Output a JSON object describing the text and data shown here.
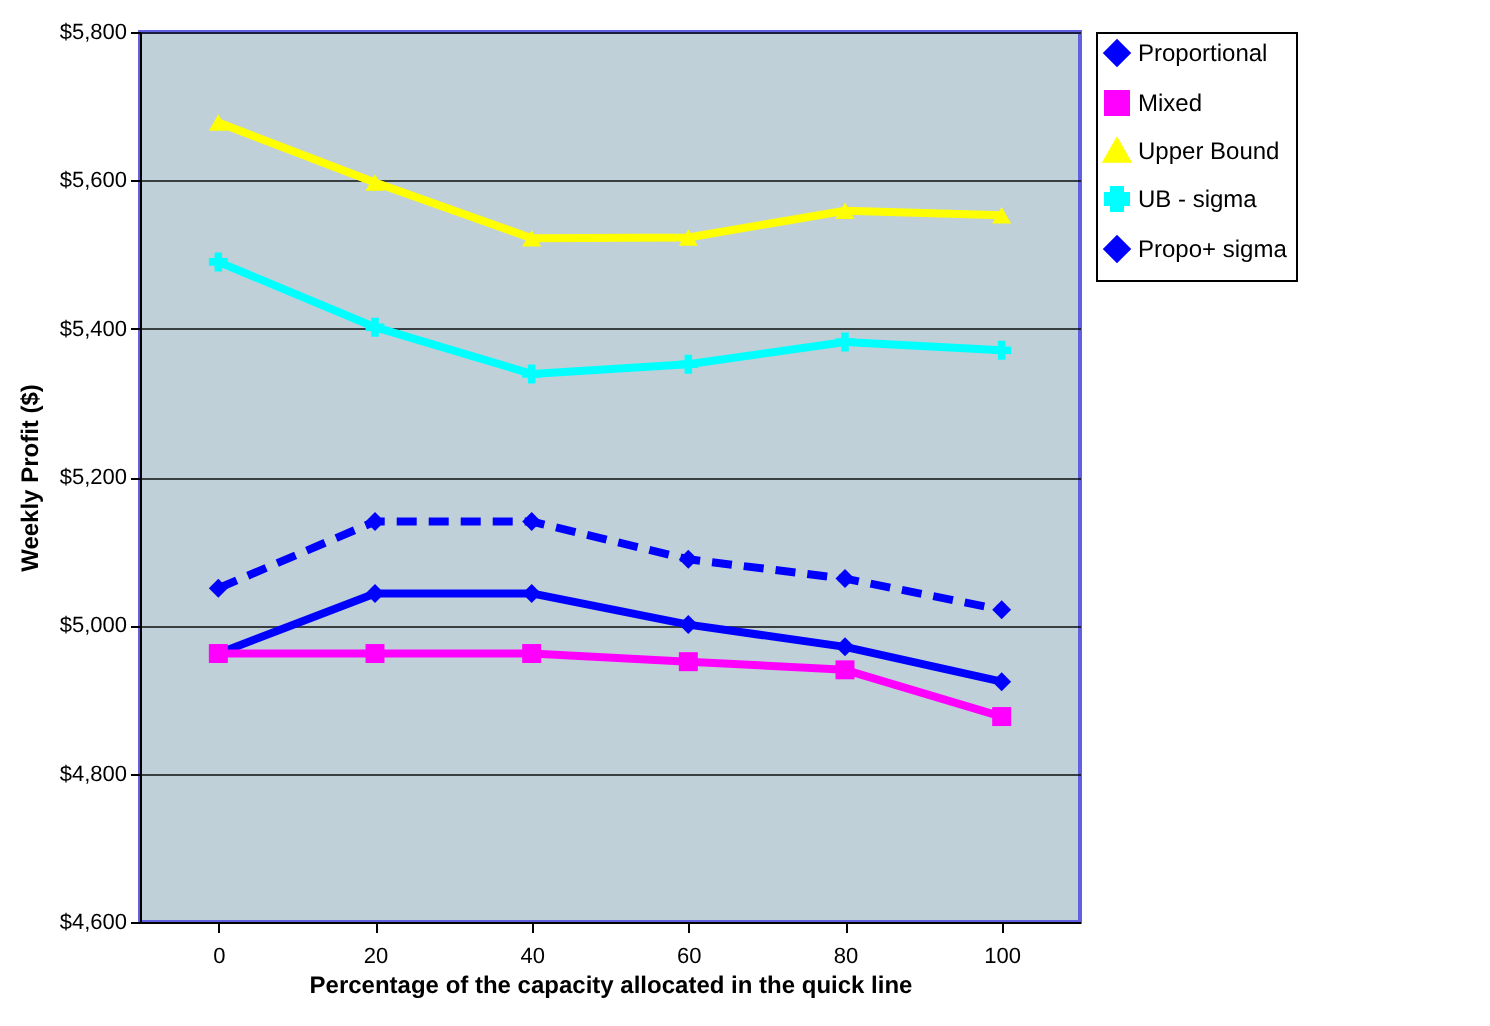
{
  "chart_data": {
    "type": "line",
    "xlabel": "Percentage of the capacity allocated in the quick line",
    "ylabel": "Weekly Profit ($)",
    "categories": [
      "0",
      "20",
      "40",
      "60",
      "80",
      "100"
    ],
    "series": [
      {
        "name": "Proportional",
        "color": "#0000ff",
        "marker": "diamond",
        "line_style": "solid",
        "values": [
          4962,
          5043,
          5043,
          5001,
          4971,
          4924
        ]
      },
      {
        "name": "Mixed",
        "color": "#ff00ff",
        "marker": "square",
        "line_style": "solid",
        "values": [
          4962,
          4962,
          4962,
          4951,
          4940,
          4877
        ]
      },
      {
        "name": "Upper Bound",
        "color": "#ffff00",
        "marker": "triangle",
        "line_style": "solid",
        "values": [
          5678,
          5597,
          5522,
          5523,
          5559,
          5553
        ]
      },
      {
        "name": "UB -  sigma",
        "color": "#00ffff",
        "marker": "cross",
        "line_style": "solid",
        "values": [
          5490,
          5402,
          5339,
          5352,
          5382,
          5371
        ]
      },
      {
        "name": "Propo+ sigma",
        "color": "#0000ff",
        "marker": "diamond",
        "line_style": "dashed",
        "values": [
          5050,
          5140,
          5140,
          5089,
          5063,
          5021
        ]
      }
    ],
    "ylim": [
      4600,
      5800
    ],
    "yticks": [
      {
        "value": 4600,
        "label": "$4,600"
      },
      {
        "value": 4800,
        "label": "$4,800"
      },
      {
        "value": 5000,
        "label": "$5,000"
      },
      {
        "value": 5200,
        "label": "$5,200"
      },
      {
        "value": 5400,
        "label": "$5,400"
      },
      {
        "value": 5600,
        "label": "$5,600"
      },
      {
        "value": 5800,
        "label": "$5,800"
      }
    ],
    "grid": "y",
    "legend": "right"
  }
}
